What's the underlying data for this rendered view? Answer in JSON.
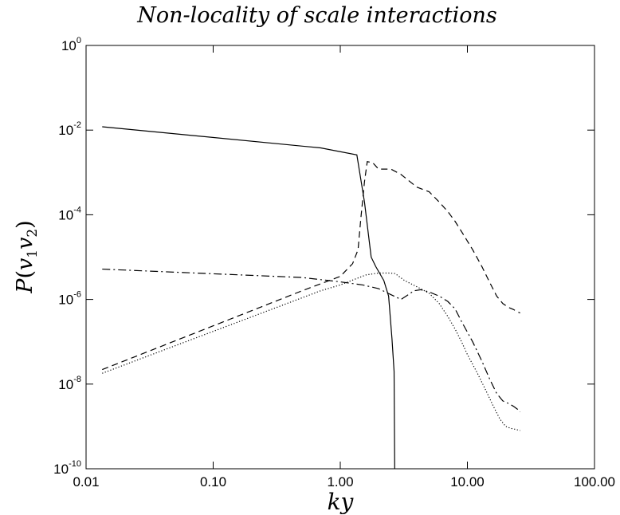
{
  "chart_data": {
    "type": "line",
    "title": "Non-locality of scale interactions",
    "xlabel": "ky",
    "ylabel": "P(v1v2)",
    "xscale": "log",
    "yscale": "log",
    "xlim": [
      0.01,
      100
    ],
    "ylim": [
      1e-10,
      1
    ],
    "grid": false,
    "x_ticks": [
      {
        "value": 0.01,
        "label": "0.01"
      },
      {
        "value": 0.1,
        "label": "0.10"
      },
      {
        "value": 1,
        "label": "1.00"
      },
      {
        "value": 10,
        "label": "10.00"
      },
      {
        "value": 100,
        "label": "100.00"
      }
    ],
    "y_ticks": [
      {
        "value": 1e-10,
        "base": "10",
        "exp": "-10"
      },
      {
        "value": 1e-08,
        "base": "10",
        "exp": "-8"
      },
      {
        "value": 1e-06,
        "base": "10",
        "exp": "-6"
      },
      {
        "value": 0.0001,
        "base": "10",
        "exp": "-4"
      },
      {
        "value": 0.01,
        "base": "10",
        "exp": "-2"
      },
      {
        "value": 1,
        "base": "10",
        "exp": "0"
      }
    ],
    "series": [
      {
        "style": "solid",
        "points": [
          [
            0.0134,
            0.012
          ],
          [
            0.7,
            0.0038
          ],
          [
            1.35,
            0.0026
          ],
          [
            1.55,
            0.0002
          ],
          [
            1.75,
            1e-05
          ],
          [
            1.9,
            6e-06
          ],
          [
            2.2,
            2.8e-06
          ],
          [
            2.4,
            1.2e-06
          ],
          [
            2.55,
            1.2e-07
          ],
          [
            2.65,
            2e-08
          ],
          [
            2.68,
            1e-10
          ]
        ]
      },
      {
        "style": "dashed",
        "points": [
          [
            0.0134,
            2.2e-08
          ],
          [
            0.5,
            1.6e-06
          ],
          [
            1.0,
            3.5e-06
          ],
          [
            1.25,
            7e-06
          ],
          [
            1.38,
            1.5e-05
          ],
          [
            1.45,
            8e-05
          ],
          [
            1.55,
            0.0006
          ],
          [
            1.63,
            0.0018
          ],
          [
            1.8,
            0.0017
          ],
          [
            2.0,
            0.0012
          ],
          [
            2.5,
            0.0012
          ],
          [
            3.0,
            0.0009
          ],
          [
            4.0,
            0.00045
          ],
          [
            5.0,
            0.00035
          ],
          [
            6.0,
            0.0002
          ],
          [
            7.0,
            0.00012
          ],
          [
            8.0,
            7e-05
          ],
          [
            9.0,
            4e-05
          ],
          [
            11.0,
            1.5e-05
          ],
          [
            13.0,
            6e-06
          ],
          [
            15.0,
            2.5e-06
          ],
          [
            17.0,
            1.2e-06
          ],
          [
            19.0,
            8e-07
          ],
          [
            21.0,
            6.5e-07
          ],
          [
            23.0,
            5.8e-07
          ],
          [
            25.0,
            5e-07
          ],
          [
            26.0,
            4.8e-07
          ]
        ]
      },
      {
        "style": "dotted",
        "points": [
          [
            0.0134,
            1.8e-08
          ],
          [
            0.7,
            1.6e-06
          ],
          [
            1.0,
            2.2e-06
          ],
          [
            1.3,
            3e-06
          ],
          [
            1.6,
            3.8e-06
          ],
          [
            2.0,
            4.2e-06
          ],
          [
            2.4,
            4.2e-06
          ],
          [
            2.7,
            4.1e-06
          ],
          [
            3.2,
            2.8e-06
          ],
          [
            4.0,
            2e-06
          ],
          [
            5.0,
            1.4e-06
          ],
          [
            6.0,
            8e-07
          ],
          [
            7.0,
            4e-07
          ],
          [
            8.0,
            2e-07
          ],
          [
            9.0,
            1e-07
          ],
          [
            10.0,
            5e-08
          ],
          [
            12.0,
            1.8e-08
          ],
          [
            14.0,
            7e-09
          ],
          [
            16.0,
            3e-09
          ],
          [
            18.0,
            1.5e-09
          ],
          [
            20.0,
            1e-09
          ],
          [
            22.0,
            9e-10
          ],
          [
            24.0,
            8.5e-10
          ],
          [
            26.0,
            8e-10
          ]
        ]
      },
      {
        "style": "dashdot",
        "points": [
          [
            0.0134,
            5.2e-06
          ],
          [
            0.5,
            3.3e-06
          ],
          [
            1.0,
            2.6e-06
          ],
          [
            1.5,
            2.2e-06
          ],
          [
            2.0,
            1.8e-06
          ],
          [
            2.5,
            1.3e-06
          ],
          [
            3.0,
            1e-06
          ],
          [
            3.3,
            1.2e-06
          ],
          [
            3.8,
            1.6e-06
          ],
          [
            4.3,
            1.7e-06
          ],
          [
            5.0,
            1.5e-06
          ],
          [
            6.0,
            1.2e-06
          ],
          [
            7.0,
            9e-07
          ],
          [
            8.0,
            6e-07
          ],
          [
            9.0,
            3e-07
          ],
          [
            11.0,
            1e-07
          ],
          [
            13.0,
            3.5e-08
          ],
          [
            15.0,
            1.3e-08
          ],
          [
            17.0,
            6e-09
          ],
          [
            19.0,
            4e-09
          ],
          [
            21.0,
            3.5e-09
          ],
          [
            23.0,
            3e-09
          ],
          [
            25.0,
            2.5e-09
          ],
          [
            26.0,
            2.2e-09
          ]
        ]
      }
    ]
  }
}
